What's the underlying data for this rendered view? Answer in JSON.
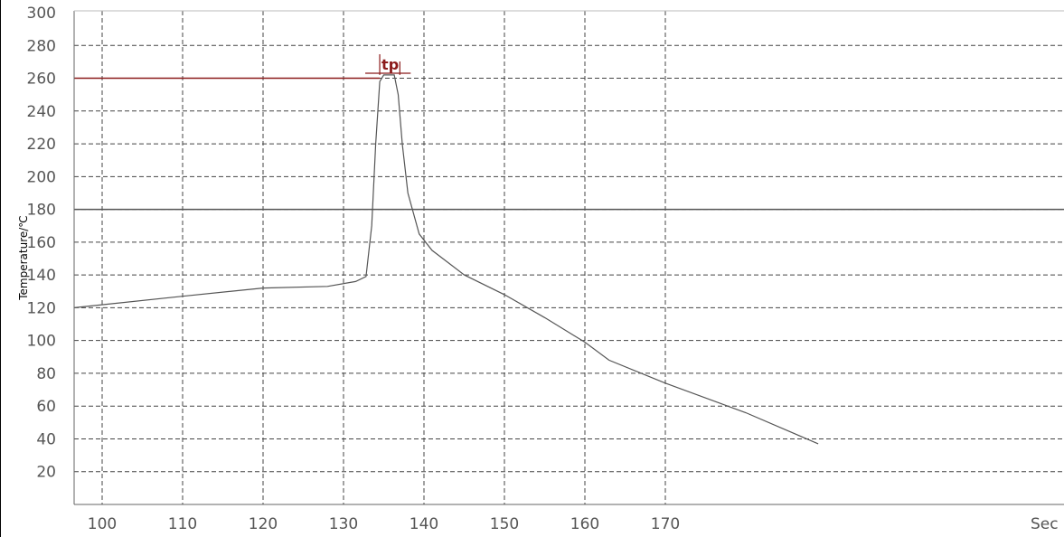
{
  "chart_data": {
    "type": "line",
    "title": "",
    "xlabel": "Sec",
    "ylabel": "Temperature/℃",
    "xlim": [
      96.5,
      1000
    ],
    "ylim": [
      0,
      300
    ],
    "grid": true,
    "x_ticks": [
      100,
      110,
      120,
      130,
      140,
      150,
      160,
      170
    ],
    "y_ticks": [
      20,
      40,
      60,
      80,
      100,
      120,
      140,
      160,
      180,
      200,
      220,
      240,
      260,
      280,
      300
    ],
    "series": [
      {
        "color": "#555555",
        "points": [
          [
            96.5,
            120
          ],
          [
            110,
            127
          ],
          [
            120,
            132
          ],
          [
            128,
            133
          ],
          [
            131.5,
            136
          ],
          [
            132.8,
            139
          ],
          [
            133.5,
            170
          ],
          [
            134,
            220
          ],
          [
            134.5,
            258
          ],
          [
            135,
            262
          ],
          [
            136.3,
            262
          ],
          [
            136.8,
            250
          ],
          [
            137.3,
            220
          ],
          [
            138,
            190
          ],
          [
            139.4,
            165
          ],
          [
            141,
            155
          ],
          [
            145,
            140
          ],
          [
            150,
            128
          ],
          [
            155,
            114
          ],
          [
            160,
            99
          ],
          [
            163,
            88
          ],
          [
            170,
            74
          ],
          [
            180,
            56
          ],
          [
            189,
            37
          ]
        ]
      }
    ],
    "reference_lines": [
      {
        "label": "",
        "y": 180,
        "color": "#555555"
      },
      {
        "label": "",
        "y": 260,
        "x_from": 96.5,
        "x_to": 134.5,
        "color": "#8b1a1a"
      }
    ],
    "annotations": [
      {
        "text": "tp",
        "x_from": 134.5,
        "x_to": 137,
        "color": "#8b1a1a"
      }
    ]
  }
}
